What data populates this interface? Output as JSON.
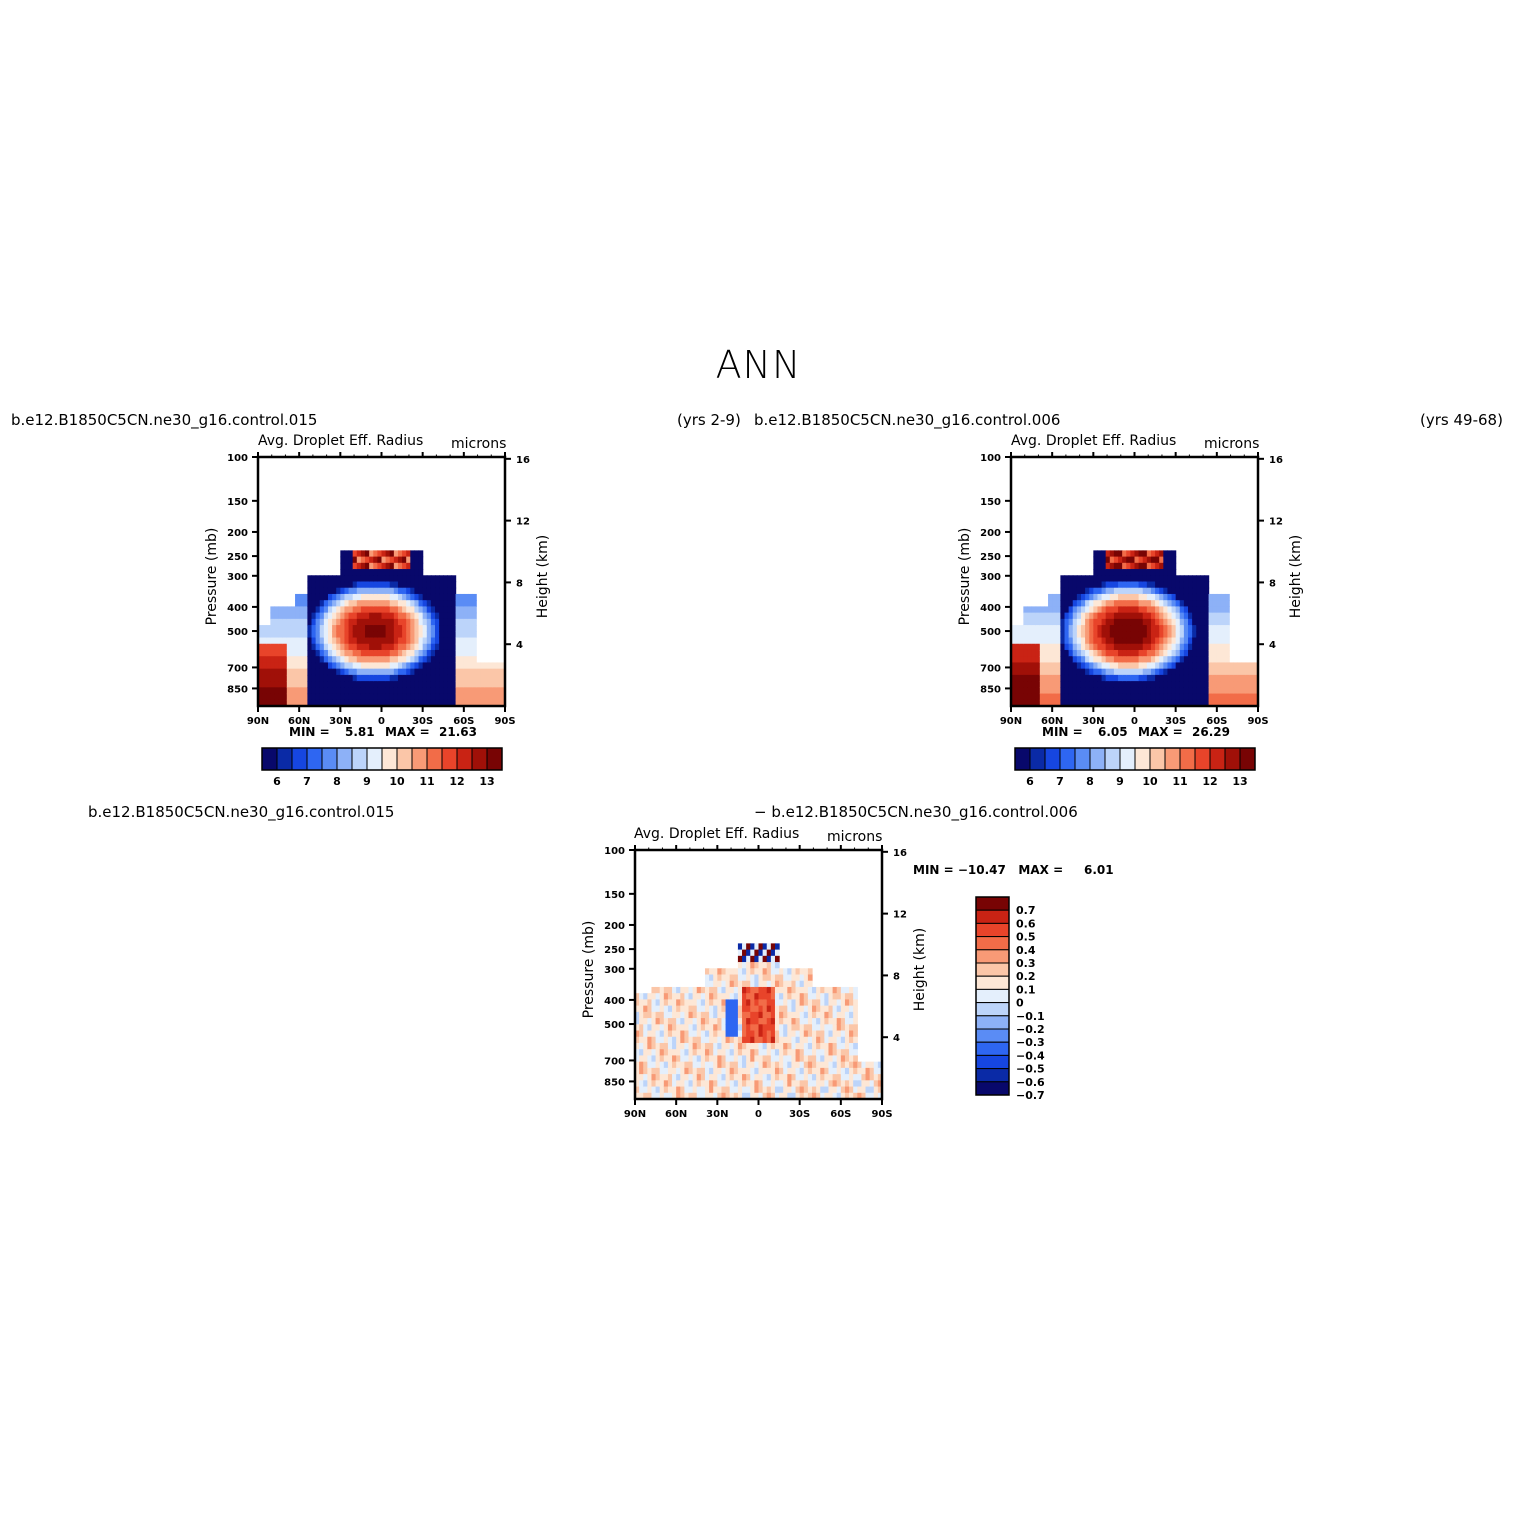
{
  "title": "ANN",
  "colors": {
    "scale_abs": [
      "#08086b",
      "#0a2aa6",
      "#1646e0",
      "#2e66f2",
      "#5a8cf5",
      "#8db1f7",
      "#bcd4fa",
      "#e4effc",
      "#fde7d6",
      "#fbc6a8",
      "#f89a76",
      "#f26c48",
      "#e8442a",
      "#c92314",
      "#a01008",
      "#780404"
    ],
    "scale_diff": [
      "#08086b",
      "#0a2aa6",
      "#1646e0",
      "#2e66f2",
      "#5a8cf5",
      "#8db1f7",
      "#bcd4fa",
      "#e4effc",
      "#fde7d6",
      "#fbc6a8",
      "#f89a76",
      "#f26c48",
      "#e8442a",
      "#c92314",
      "#780404"
    ]
  },
  "panel1": {
    "case_name": "b.e12.B1850C5CN.ne30_g16.control.015",
    "years": "(yrs 2-9)",
    "var_title": "Avg. Droplet Eff. Radius",
    "units": "microns",
    "min_label": "MIN =",
    "min_value": "5.81",
    "max_label": "MAX =",
    "max_value": "21.63"
  },
  "panel2": {
    "case_name": "b.e12.B1850C5CN.ne30_g16.control.006",
    "years": "(yrs 49-68)",
    "var_title": "Avg. Droplet Eff. Radius",
    "units": "microns",
    "min_label": "MIN =",
    "min_value": "6.05",
    "max_label": "MAX =",
    "max_value": "26.29"
  },
  "panel3": {
    "case_left": "b.e12.B1850C5CN.ne30_g16.control.015",
    "case_right": "− b.e12.B1850C5CN.ne30_g16.control.006",
    "var_title": "Avg. Droplet Eff. Radius",
    "units": "microns",
    "minmax_text": "MIN = −10.47   MAX =     6.01"
  },
  "chart_data": [
    {
      "type": "heatmap",
      "title": "Avg. Droplet Eff. Radius",
      "units": "microns",
      "xlabel": "",
      "ylabel": "Pressure (mb)",
      "y2label": "Height (km)",
      "x_ticks": [
        "90N",
        "60N",
        "30N",
        "0",
        "30S",
        "60S",
        "90S"
      ],
      "y_ticks": [
        "100",
        "150",
        "200",
        "250",
        "300",
        "400",
        "500",
        "700",
        "850"
      ],
      "y2_ticks": [
        "16",
        "12",
        "8",
        "4"
      ],
      "ylim": [
        100,
        1000
      ],
      "colorbar_levels": [
        "6",
        "7",
        "8",
        "9",
        "10",
        "11",
        "12",
        "13"
      ],
      "min": 5.81,
      "max": 21.63
    },
    {
      "type": "heatmap",
      "title": "Avg. Droplet Eff. Radius",
      "units": "microns",
      "xlabel": "",
      "ylabel": "Pressure (mb)",
      "y2label": "Height (km)",
      "x_ticks": [
        "90N",
        "60N",
        "30N",
        "0",
        "30S",
        "60S",
        "90S"
      ],
      "y_ticks": [
        "100",
        "150",
        "200",
        "250",
        "300",
        "400",
        "500",
        "700",
        "850"
      ],
      "y2_ticks": [
        "16",
        "12",
        "8",
        "4"
      ],
      "ylim": [
        100,
        1000
      ],
      "colorbar_levels": [
        "6",
        "7",
        "8",
        "9",
        "10",
        "11",
        "12",
        "13"
      ],
      "min": 6.05,
      "max": 26.29
    },
    {
      "type": "heatmap",
      "title": "Avg. Droplet Eff. Radius",
      "units": "microns",
      "xlabel": "",
      "ylabel": "Pressure (mb)",
      "y2label": "Height (km)",
      "x_ticks": [
        "90N",
        "60N",
        "30N",
        "0",
        "30S",
        "60S",
        "90S"
      ],
      "y_ticks": [
        "100",
        "150",
        "200",
        "250",
        "300",
        "400",
        "500",
        "700",
        "850"
      ],
      "y2_ticks": [
        "16",
        "12",
        "8",
        "4"
      ],
      "ylim": [
        100,
        1000
      ],
      "colorbar_levels": [
        "0.7",
        "0.6",
        "0.5",
        "0.4",
        "0.3",
        "0.2",
        "0.1",
        "0",
        "−0.1",
        "−0.2",
        "−0.3",
        "−0.4",
        "−0.5",
        "−0.6",
        "−0.7"
      ],
      "min": -10.47,
      "max": 6.01
    }
  ]
}
